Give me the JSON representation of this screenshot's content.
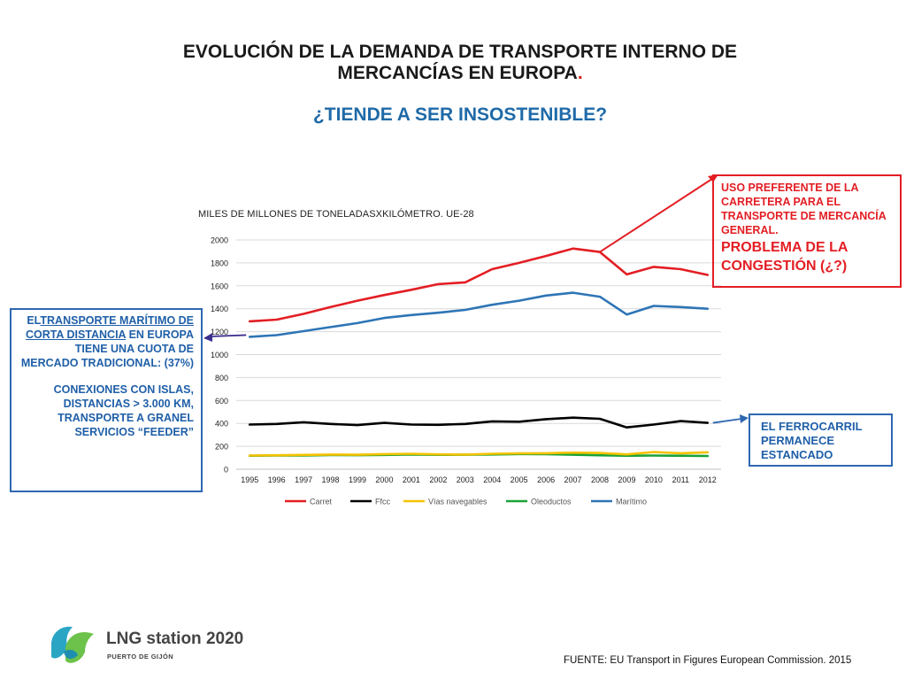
{
  "header": {
    "title_line1": "EVOLUCIÓN DE LA DEMANDA DE TRANSPORTE INTERNO DE",
    "title_line2": "MERCANCÍAS EN EUROPA",
    "title_dot": ".",
    "subtitle": "¿TIENDE A SER INSOSTENIBLE?"
  },
  "chart_data": {
    "type": "line",
    "title": "MILES DE MILLONES DE TONELADASXKILÓMETRO. UE-28",
    "xlabel": "",
    "ylabel": "",
    "ylim": [
      0,
      2000
    ],
    "yticks": [
      "0",
      "200",
      "400",
      "600",
      "800",
      "1000",
      "1200",
      "1400",
      "1600",
      "1800",
      "2000"
    ],
    "categories": [
      "1995",
      "1996",
      "1997",
      "1998",
      "1999",
      "2000",
      "2001",
      "2002",
      "2003",
      "2004",
      "2005",
      "2006",
      "2007",
      "2008",
      "2009",
      "2010",
      "2011",
      "2012"
    ],
    "grid": true,
    "legend_position": "bottom",
    "series": [
      {
        "name": "Carret",
        "color": "#e31e24",
        "values": [
          1290,
          1305,
          1355,
          1415,
          1470,
          1520,
          1565,
          1615,
          1630,
          1745,
          1800,
          1860,
          1925,
          1895,
          1700,
          1765,
          1745,
          1695
        ]
      },
      {
        "name": "Ffcc",
        "color": "#000000",
        "values": [
          390,
          395,
          410,
          395,
          385,
          405,
          390,
          388,
          395,
          418,
          415,
          437,
          450,
          440,
          365,
          390,
          420,
          405
        ]
      },
      {
        "name": "Vías navegables",
        "color": "#f5c200",
        "values": [
          120,
          122,
          125,
          128,
          127,
          132,
          135,
          130,
          128,
          135,
          138,
          140,
          145,
          142,
          130,
          150,
          140,
          148
        ]
      },
      {
        "name": "Oleoductos",
        "color": "#1aa337",
        "values": [
          118,
          120,
          120,
          124,
          123,
          125,
          129,
          126,
          127,
          129,
          133,
          132,
          127,
          122,
          118,
          120,
          118,
          116
        ]
      },
      {
        "name": "Marítimo",
        "color": "#2e75b6",
        "values": [
          1155,
          1170,
          1205,
          1240,
          1275,
          1320,
          1345,
          1365,
          1390,
          1435,
          1470,
          1515,
          1540,
          1505,
          1350,
          1425,
          1415,
          1400
        ]
      }
    ]
  },
  "annotations": {
    "road": {
      "text": "USO PREFERENTE DE LA CARRETERA PARA EL TRANSPORTE DE MERCANCÍA GENERAL.",
      "big": "PROBLEMA DE LA CONGESTIÓN (¿?)"
    },
    "maritime": {
      "part1": "EL",
      "part2": "TRANSPORTE MARÍTIMO DE CORTA DISTANCIA",
      "part3": " EN EUROPA TIENE UNA CUOTA DE MERCADO TRADICIONAL: (37%)",
      "part4": "CONEXIONES CON ISLAS, DISTANCIAS > 3.000 KM, TRANSPORTE A GRANEL SERVICIOS “FEEDER”"
    },
    "rail": {
      "text": "EL FERROCARRIL PERMANECE ESTANCADO"
    }
  },
  "footer": {
    "logo_name": "LNG station 2020",
    "logo_sub": "PUERTO DE GIJÓN",
    "source": "FUENTE: EU Transport in Figures European Commission. 2015"
  },
  "colors": {
    "red": "#e31e24",
    "blue": "#2e67b1",
    "dark_blue": "#1f5fa8"
  }
}
